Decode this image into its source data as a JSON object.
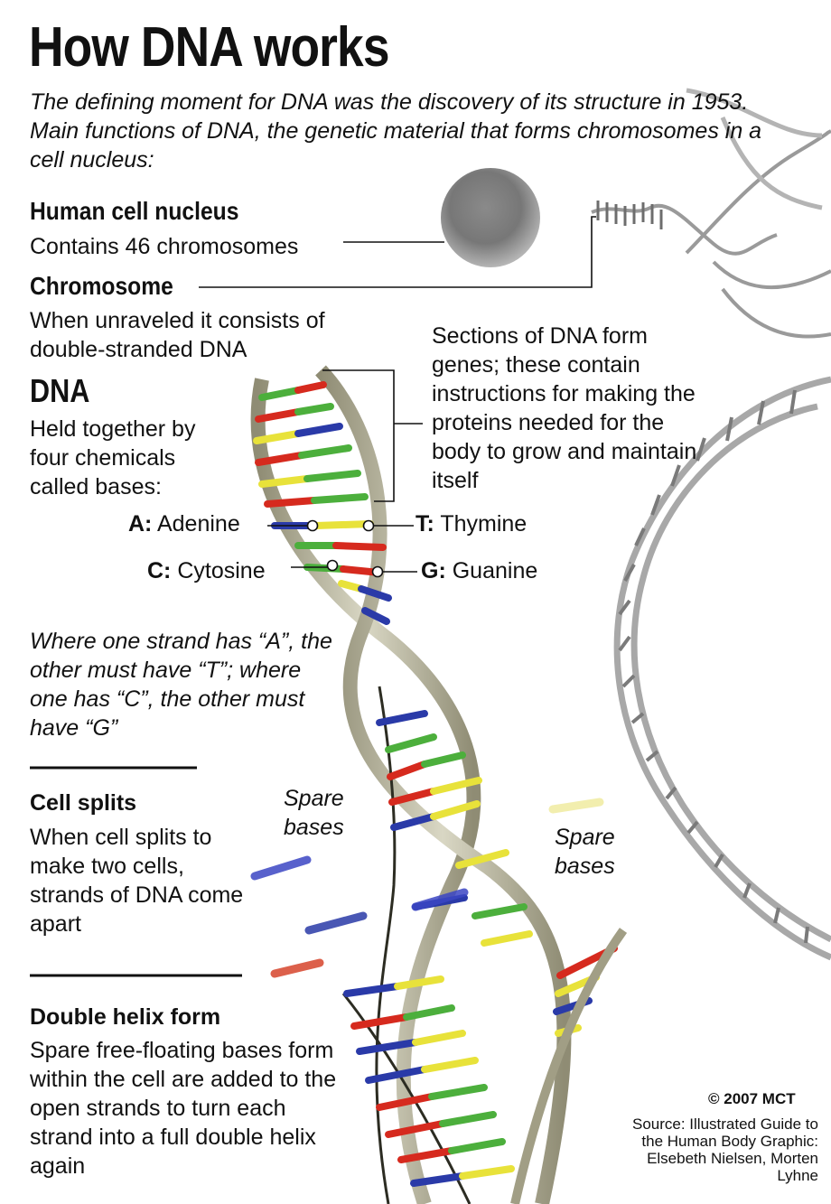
{
  "title": "How DNA works",
  "intro": "The defining moment for DNA was the discovery of its structure in 1953. Main functions of DNA, the genetic material that forms chromosomes in a cell nucleus:",
  "nucleus": {
    "heading": "Human cell nucleus",
    "text": "Contains 46 chromosomes"
  },
  "chromosome": {
    "heading": "Chromosome",
    "text": "When unraveled it consists of double-stranded DNA"
  },
  "dna": {
    "heading": "DNA",
    "text": "Held together by four chemicals called bases:"
  },
  "genes_note": "Sections of DNA form genes; these contain instructions for making the proteins needed for the body to grow and maintain itself",
  "bases": {
    "a_letter": "A:",
    "a_name": "Adenine",
    "t_letter": "T:",
    "t_name": "Thymine",
    "c_letter": "C:",
    "c_name": "Cytosine",
    "g_letter": "G:",
    "g_name": "Guanine"
  },
  "pairing_note": "Where one strand has “A”, the other must have “T”; where one has “C”, the other must have “G”",
  "cell_splits": {
    "heading": "Cell splits",
    "text": "When cell splits to make two cells, strands of DNA come apart"
  },
  "spare_bases_1": "Spare bases",
  "spare_bases_2": "Spare bases",
  "double_helix": {
    "heading": "Double helix form",
    "text": "Spare free-floating bases form within the cell are added to the open strands to turn each strand into a full double helix again"
  },
  "copyright": "© 2007 MCT",
  "credits": "Source: Illustrated Guide to the Human Body Graphic: Elsebeth Nielsen, Morten Lyhne",
  "colors": {
    "adenine": "#d62a1e",
    "thymine": "#e8e23a",
    "cytosine": "#4caf3c",
    "guanine": "#2a3aa8",
    "strand": "#b7b49a"
  }
}
